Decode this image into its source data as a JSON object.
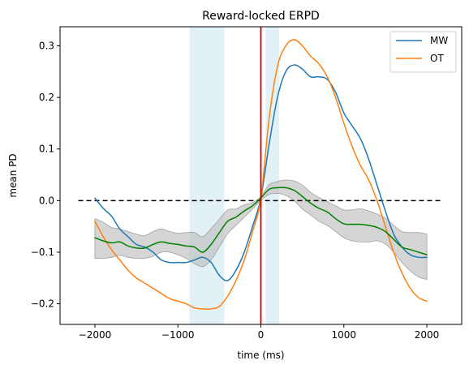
{
  "chart_data": {
    "type": "line",
    "title": "Reward-locked ERPD",
    "xlabel": "time (ms)",
    "ylabel": "mean PD",
    "xlim": [
      -2420,
      2420
    ],
    "ylim": [
      -0.24,
      0.337
    ],
    "xticks": [
      -2000,
      -1000,
      0,
      1000,
      2000
    ],
    "xtick_labels": [
      "−2000",
      "−1000",
      "0",
      "1000",
      "2000"
    ],
    "yticks": [
      -0.2,
      -0.1,
      0.0,
      0.1,
      0.2,
      0.3
    ],
    "ytick_labels": [
      "−0.2",
      "−0.1",
      "0.0",
      "0.1",
      "0.2",
      "0.3"
    ],
    "grid": false,
    "legend_position": "top-right",
    "shaded_regions": [
      {
        "x0": -860,
        "x1": -440,
        "color": "#add8e6"
      },
      {
        "x0": 60,
        "x1": 220,
        "color": "#add8e6"
      }
    ],
    "reference_lines": [
      {
        "orientation": "horizontal",
        "y": 0.0,
        "x0": -2200,
        "x1": 2200,
        "style": "dashed",
        "color": "#000000"
      },
      {
        "orientation": "vertical",
        "x": 0,
        "color": "#cc0000"
      }
    ],
    "series": [
      {
        "name": "MW",
        "color": "#1f77b4",
        "x": [
          -2000,
          -1900,
          -1800,
          -1700,
          -1600,
          -1500,
          -1400,
          -1300,
          -1200,
          -1100,
          -1000,
          -900,
          -800,
          -700,
          -600,
          -500,
          -400,
          -300,
          -200,
          -100,
          0,
          100,
          200,
          300,
          400,
          500,
          600,
          700,
          800,
          900,
          1000,
          1100,
          1200,
          1300,
          1400,
          1500,
          1600,
          1700,
          1800,
          1900,
          2000
        ],
        "y": [
          0.005,
          -0.015,
          -0.03,
          -0.055,
          -0.07,
          -0.085,
          -0.09,
          -0.1,
          -0.115,
          -0.12,
          -0.12,
          -0.12,
          -0.115,
          -0.11,
          -0.12,
          -0.145,
          -0.155,
          -0.135,
          -0.1,
          -0.05,
          0.005,
          0.11,
          0.2,
          0.25,
          0.263,
          0.255,
          0.24,
          0.24,
          0.235,
          0.21,
          0.17,
          0.145,
          0.12,
          0.08,
          0.03,
          -0.02,
          -0.065,
          -0.09,
          -0.105,
          -0.11,
          -0.11
        ]
      },
      {
        "name": "OT",
        "color": "#ff7f0e",
        "x": [
          -2000,
          -1900,
          -1800,
          -1700,
          -1600,
          -1500,
          -1400,
          -1300,
          -1200,
          -1100,
          -1000,
          -900,
          -800,
          -700,
          -600,
          -500,
          -400,
          -300,
          -200,
          -100,
          0,
          100,
          200,
          300,
          400,
          500,
          600,
          700,
          800,
          900,
          1000,
          1100,
          1200,
          1300,
          1400,
          1500,
          1600,
          1700,
          1800,
          1900,
          2000
        ],
        "y": [
          -0.04,
          -0.07,
          -0.095,
          -0.115,
          -0.135,
          -0.15,
          -0.16,
          -0.17,
          -0.18,
          -0.19,
          -0.195,
          -0.2,
          -0.208,
          -0.21,
          -0.21,
          -0.205,
          -0.185,
          -0.155,
          -0.115,
          -0.06,
          0.005,
          0.16,
          0.26,
          0.3,
          0.312,
          0.3,
          0.28,
          0.265,
          0.24,
          0.2,
          0.15,
          0.105,
          0.068,
          0.04,
          0.0,
          -0.05,
          -0.1,
          -0.14,
          -0.17,
          -0.188,
          -0.195
        ]
      },
      {
        "color": "#008000",
        "x": [
          -2000,
          -1900,
          -1800,
          -1700,
          -1600,
          -1500,
          -1400,
          -1300,
          -1200,
          -1100,
          -1000,
          -900,
          -800,
          -700,
          -600,
          -500,
          -400,
          -300,
          -200,
          -100,
          0,
          100,
          200,
          300,
          400,
          500,
          600,
          700,
          800,
          900,
          1000,
          1100,
          1200,
          1300,
          1400,
          1500,
          1600,
          1700,
          1800,
          1900,
          2000
        ],
        "y": [
          -0.072,
          -0.078,
          -0.082,
          -0.08,
          -0.088,
          -0.092,
          -0.092,
          -0.085,
          -0.08,
          -0.083,
          -0.085,
          -0.088,
          -0.09,
          -0.1,
          -0.085,
          -0.062,
          -0.04,
          -0.032,
          -0.02,
          -0.01,
          0.005,
          0.022,
          0.025,
          0.025,
          0.02,
          0.008,
          -0.005,
          -0.015,
          -0.022,
          -0.035,
          -0.045,
          -0.046,
          -0.046,
          -0.048,
          -0.052,
          -0.06,
          -0.075,
          -0.09,
          -0.095,
          -0.1,
          -0.105
        ],
        "band_lower": [
          -0.112,
          -0.112,
          -0.11,
          -0.106,
          -0.11,
          -0.112,
          -0.112,
          -0.108,
          -0.1,
          -0.1,
          -0.105,
          -0.112,
          -0.122,
          -0.128,
          -0.115,
          -0.09,
          -0.064,
          -0.048,
          -0.032,
          -0.016,
          0.0,
          0.012,
          0.014,
          0.01,
          0.0,
          -0.016,
          -0.028,
          -0.04,
          -0.048,
          -0.06,
          -0.072,
          -0.078,
          -0.08,
          -0.08,
          -0.078,
          -0.084,
          -0.1,
          -0.12,
          -0.136,
          -0.148,
          -0.153
        ],
        "band_upper": [
          -0.035,
          -0.042,
          -0.052,
          -0.055,
          -0.06,
          -0.065,
          -0.068,
          -0.06,
          -0.055,
          -0.06,
          -0.063,
          -0.062,
          -0.062,
          -0.07,
          -0.054,
          -0.036,
          -0.018,
          -0.016,
          -0.008,
          -0.004,
          0.008,
          0.031,
          0.037,
          0.04,
          0.038,
          0.03,
          0.016,
          0.006,
          -0.002,
          -0.01,
          -0.018,
          -0.018,
          -0.016,
          -0.02,
          -0.026,
          -0.034,
          -0.048,
          -0.06,
          -0.062,
          -0.062,
          -0.065
        ],
        "band_color": "#bebebe"
      }
    ]
  }
}
